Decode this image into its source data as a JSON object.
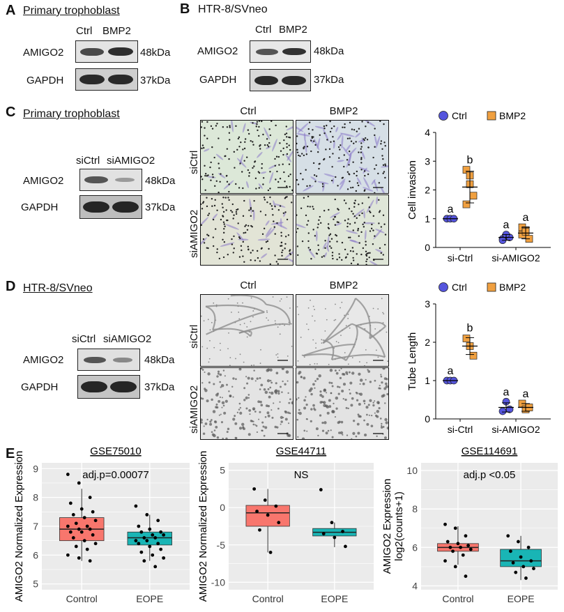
{
  "panelA": {
    "label": "A",
    "title": "Primary trophoblast",
    "lanes": [
      "Ctrl",
      "BMP2"
    ],
    "proteins": [
      "AMIGO2",
      "GAPDH"
    ],
    "kda": [
      "48kDa",
      "37kDa"
    ]
  },
  "panelB": {
    "label": "B",
    "title": "HTR-8/SVneo",
    "lanes": [
      "Ctrl",
      "BMP2"
    ],
    "proteins": [
      "AMIGO2",
      "GAPDH"
    ],
    "kda": [
      "48kDa",
      "37kDa"
    ]
  },
  "panelC": {
    "label": "C",
    "title": "Primary trophoblast",
    "lanes": [
      "siCtrl",
      "siAMIGO2"
    ],
    "proteins": [
      "AMIGO2",
      "GAPDH"
    ],
    "kda": [
      "48kDa",
      "37kDa"
    ],
    "micro_cols": [
      "Ctrl",
      "BMP2"
    ],
    "micro_rows": [
      "siCtrl",
      "siAMIGO2"
    ]
  },
  "panelD": {
    "label": "D",
    "title": "HTR-8/SVneo",
    "lanes": [
      "siCtrl",
      "siAMIGO2"
    ],
    "proteins": [
      "AMIGO2",
      "GAPDH"
    ],
    "kda": [
      "48kDa",
      "37kDa"
    ],
    "micro_cols": [
      "Ctrl",
      "BMP2"
    ],
    "micro_rows": [
      "siCtrl",
      "siAMIGO2"
    ]
  },
  "panelE": {
    "label": "E"
  },
  "colors": {
    "ctrl": "#5555dd",
    "bmp2": "#f0a040",
    "control_box": "#f8766d",
    "eope_box": "#19b5b5",
    "grid_bg": "#ebebeb"
  },
  "chart_data": [
    {
      "type": "scatter",
      "panel": "C",
      "ylabel": "Cell invasion",
      "categories": [
        "si-Ctrl",
        "si-AMIGO2"
      ],
      "ylim": [
        0,
        4
      ],
      "yticks": [
        0,
        1,
        2,
        3,
        4
      ],
      "legend": [
        "Ctrl",
        "BMP2"
      ],
      "legend_position": "top",
      "series": [
        {
          "name": "Ctrl",
          "mean": [
            1.0,
            0.35
          ],
          "sd": [
            0.0,
            0.1
          ],
          "points": [
            [
              1.0,
              1.0,
              1.0
            ],
            [
              0.3,
              0.4,
              0.35,
              0.25,
              0.45
            ]
          ]
        },
        {
          "name": "BMP2",
          "mean": [
            2.1,
            0.5
          ],
          "sd": [
            0.55,
            0.2
          ],
          "points": [
            [
              2.7,
              2.5,
              1.8,
              1.5,
              2.2
            ],
            [
              0.7,
              0.6,
              0.3,
              0.45,
              0.55
            ]
          ]
        }
      ],
      "annotations": [
        "a",
        "b",
        "a",
        "a"
      ]
    },
    {
      "type": "scatter",
      "panel": "D",
      "ylabel": "Tube Length",
      "categories": [
        "si-Ctrl",
        "si-AMIGO2"
      ],
      "ylim": [
        0,
        3
      ],
      "yticks": [
        0,
        1,
        2,
        3
      ],
      "legend": [
        "Ctrl",
        "BMP2"
      ],
      "legend_position": "top",
      "series": [
        {
          "name": "Ctrl",
          "mean": [
            1.0,
            0.3
          ],
          "sd": [
            0.0,
            0.12
          ],
          "points": [
            [
              1.0,
              1.0,
              1.0
            ],
            [
              0.2,
              0.45,
              0.25
            ]
          ]
        },
        {
          "name": "BMP2",
          "mean": [
            1.9,
            0.3
          ],
          "sd": [
            0.22,
            0.1
          ],
          "points": [
            [
              2.1,
              1.9,
              1.65
            ],
            [
              0.4,
              0.25,
              0.3
            ]
          ]
        }
      ],
      "annotations": [
        "a",
        "b",
        "a",
        "a"
      ]
    },
    {
      "type": "box",
      "panel": "E1",
      "title": "GSE75010",
      "annotation": "adj.p=0.00077",
      "ylabel": "AMIGO2 Normalized Expression",
      "categories": [
        "Control",
        "EOPE"
      ],
      "ylim": [
        4.8,
        9.2
      ],
      "yticks": [
        5,
        6,
        7,
        8,
        9
      ],
      "boxes": [
        {
          "q1": 6.5,
          "median": 6.9,
          "q3": 7.3,
          "whisker_low": 5.8,
          "whisker_high": 8.3
        },
        {
          "q1": 6.35,
          "median": 6.6,
          "q3": 6.8,
          "whisker_low": 5.8,
          "whisker_high": 7.4
        }
      ],
      "points": [
        [
          8.8,
          8.5,
          8.0,
          7.8,
          7.6,
          7.5,
          7.4,
          7.3,
          7.2,
          7.1,
          7.0,
          7.0,
          6.9,
          6.9,
          6.8,
          6.8,
          6.7,
          6.6,
          6.5,
          6.4,
          6.3,
          6.2,
          6.0,
          5.9,
          5.8
        ],
        [
          7.7,
          7.4,
          7.2,
          7.0,
          6.9,
          6.8,
          6.8,
          6.7,
          6.7,
          6.6,
          6.6,
          6.5,
          6.5,
          6.4,
          6.4,
          6.3,
          6.2,
          6.1,
          6.0,
          5.9,
          5.8,
          5.6
        ]
      ]
    },
    {
      "type": "box",
      "panel": "E2",
      "title": "GSE44711",
      "annotation": "NS",
      "ylabel": "AMIGO2 Normalized Expression",
      "categories": [
        "Control",
        "EOPE"
      ],
      "ylim": [
        -11,
        6
      ],
      "yticks": [
        -10,
        -5,
        0,
        5
      ],
      "boxes": [
        {
          "q1": -2.5,
          "median": -0.7,
          "q3": 0.3,
          "whisker_low": -6.0,
          "whisker_high": 2.5
        },
        {
          "q1": -3.8,
          "median": -3.3,
          "q3": -2.8,
          "whisker_low": -5.3,
          "whisker_high": -2.0
        }
      ],
      "points": [
        [
          2.5,
          1.0,
          0.2,
          -0.5,
          -1.0,
          -2.0,
          -3.0,
          -6.0
        ],
        [
          2.4,
          -2.0,
          -3.2,
          -3.5,
          -4.0,
          -5.2
        ]
      ]
    },
    {
      "type": "box",
      "panel": "E3",
      "title": "GSE114691",
      "annotation": "adj.p <0.05",
      "ylabel": "AMIGO2 Expression log2(counts+1)",
      "categories": [
        "Control",
        "EOPE"
      ],
      "ylim": [
        3.8,
        10.4
      ],
      "yticks": [
        4,
        6,
        8,
        10
      ],
      "boxes": [
        {
          "q1": 5.8,
          "median": 6.0,
          "q3": 6.2,
          "whisker_low": 5.1,
          "whisker_high": 7.1
        },
        {
          "q1": 5.0,
          "median": 5.3,
          "q3": 5.9,
          "whisker_low": 4.3,
          "whisker_high": 6.6
        }
      ],
      "points": [
        [
          7.2,
          7.0,
          6.6,
          6.3,
          6.2,
          6.1,
          6.0,
          6.0,
          5.9,
          5.8,
          5.6,
          5.3,
          5.0,
          4.5
        ],
        [
          6.6,
          6.3,
          6.0,
          5.8,
          5.5,
          5.3,
          5.2,
          5.0,
          4.9,
          4.7,
          4.4
        ]
      ]
    }
  ]
}
